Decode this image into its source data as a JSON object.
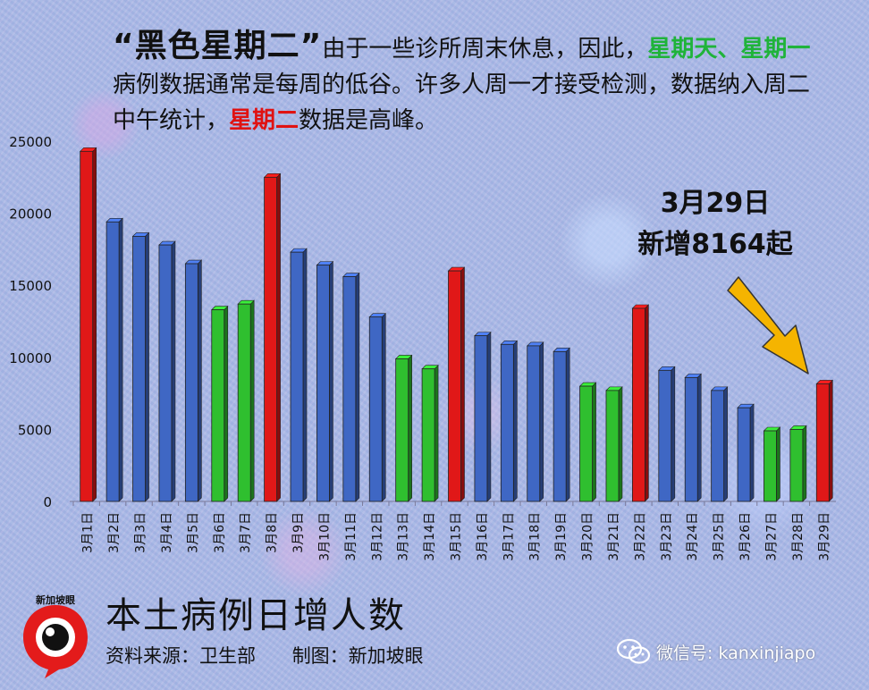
{
  "headline": {
    "part1": "“黑色星期二”",
    "part2": "由于一些诊所周末休息，因此，",
    "part3": "星期天、星期一",
    "part4": "病例数据通常是每周的低谷。许多人周一才接受检测，数据纳入周二中午统计，",
    "part5": "星期二",
    "part6": "数据是高峰。"
  },
  "callout": {
    "line1": "3月29日",
    "line2": "新增8164起"
  },
  "footer": {
    "title": "本土病例日增人数",
    "source": "资料来源：卫生部",
    "maker": "制图：新加坡眼"
  },
  "logo": {
    "text": "新加坡眼"
  },
  "watermark": {
    "text": "微信号: kanxinjiapo"
  },
  "colors": {
    "blue": "#3f67c4",
    "green": "#2fbf2f",
    "red": "#e01818",
    "arrow": "#f5b400"
  },
  "chart_data": {
    "type": "bar",
    "ylim": [
      0,
      25000
    ],
    "yticks": [
      0,
      5000,
      10000,
      15000,
      20000,
      25000
    ],
    "categories": [
      "3月1日",
      "3月2日",
      "3月3日",
      "3月4日",
      "3月5日",
      "3月6日",
      "3月7日",
      "3月8日",
      "3月9日",
      "3月10日",
      "3月11日",
      "3月12日",
      "3月13日",
      "3月14日",
      "3月15日",
      "3月16日",
      "3月17日",
      "3月18日",
      "3月19日",
      "3月20日",
      "3月21日",
      "3月22日",
      "3月23日",
      "3月24日",
      "3月25日",
      "3月26日",
      "3月27日",
      "3月28日",
      "3月29日"
    ],
    "values": [
      24300,
      19400,
      18400,
      17800,
      16500,
      13300,
      13700,
      22500,
      17300,
      16400,
      15600,
      12800,
      9900,
      9200,
      16000,
      11500,
      10900,
      10800,
      10400,
      8000,
      7700,
      13400,
      9100,
      8600,
      7700,
      6500,
      4900,
      5000,
      8164
    ],
    "bar_colors": [
      "red",
      "blue",
      "blue",
      "blue",
      "blue",
      "green",
      "green",
      "red",
      "blue",
      "blue",
      "blue",
      "blue",
      "green",
      "green",
      "red",
      "blue",
      "blue",
      "blue",
      "blue",
      "green",
      "green",
      "red",
      "blue",
      "blue",
      "blue",
      "blue",
      "green",
      "green",
      "red"
    ]
  }
}
